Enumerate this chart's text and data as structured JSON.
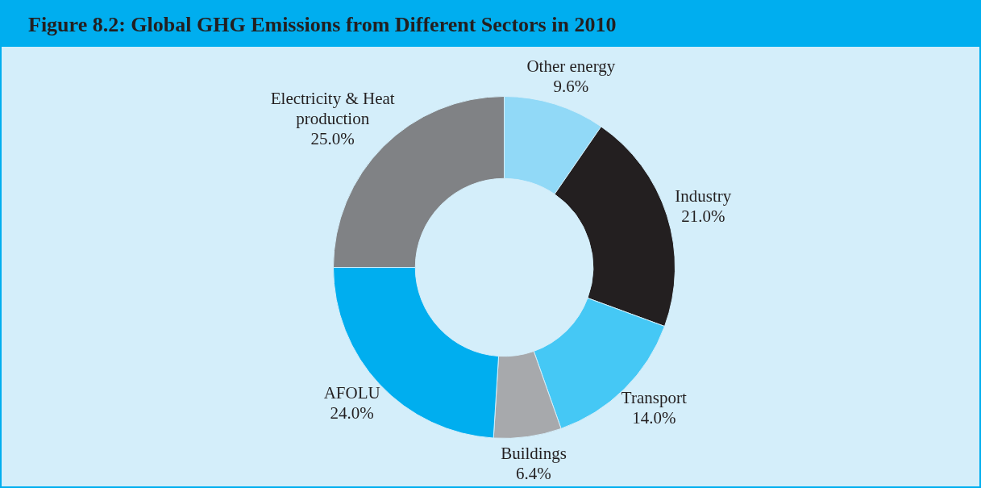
{
  "chart_data": {
    "type": "donut",
    "title": "Figure 8.2:  Global GHG Emissions from Different Sectors in 2010",
    "categories": [
      "Other energy",
      "Industry",
      "Transport",
      "Buildings",
      "AFOLU",
      "Electricity & Heat production"
    ],
    "values": [
      9.6,
      21.0,
      14.0,
      6.4,
      24.0,
      25.0
    ],
    "value_labels": [
      "9.6%",
      "21.0%",
      "14.0%",
      "6.4%",
      "24.0%",
      "25.0%"
    ],
    "colors": [
      "#91d9f7",
      "#231f20",
      "#45c8f5",
      "#a7a9ac",
      "#00aeef",
      "#808285"
    ],
    "legend": false
  }
}
